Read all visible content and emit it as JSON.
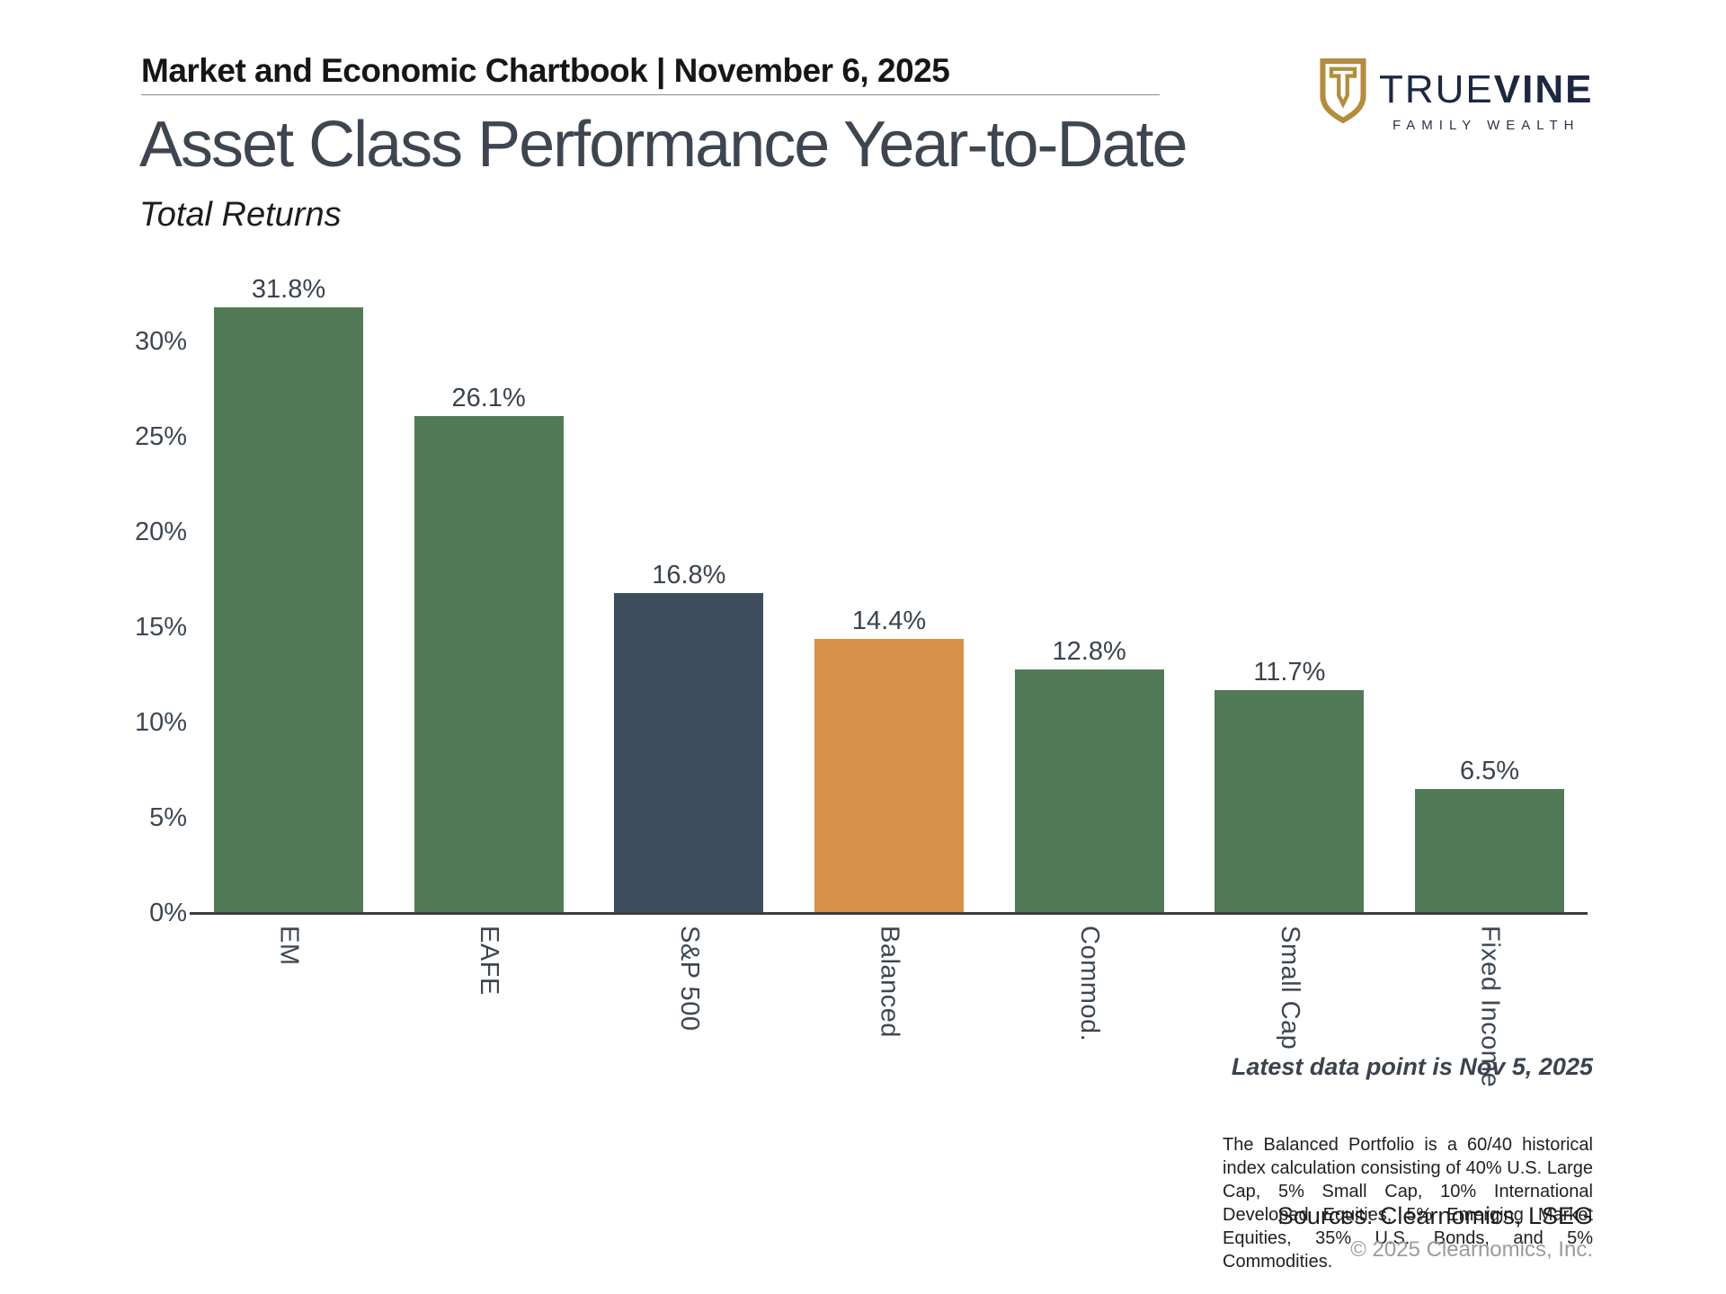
{
  "header": {
    "chartbook_title": "Market and Economic Chartbook | November 6, 2025"
  },
  "logo": {
    "brand_primary": "TRUE",
    "brand_secondary": "VINE",
    "tagline": "FAMILY WEALTH",
    "shield_color": "#b28d3e",
    "text_color": "#1e2742"
  },
  "title": "Asset Class Performance Year-to-Date",
  "subtitle": "Total Returns",
  "chart_data": {
    "type": "bar",
    "title": "Asset Class Performance Year-to-Date",
    "subtitle": "Total Returns",
    "categories": [
      "EM",
      "EAFE",
      "S&P 500",
      "Balanced",
      "Commod.",
      "Small Cap",
      "Fixed Income"
    ],
    "values": [
      31.8,
      26.1,
      16.8,
      14.4,
      12.8,
      11.7,
      6.5
    ],
    "value_labels": [
      "31.8%",
      "26.1%",
      "16.8%",
      "14.4%",
      "12.8%",
      "11.7%",
      "6.5%"
    ],
    "bar_colors": [
      "#537a57",
      "#537a57",
      "#3d4d5e",
      "#d8904a",
      "#537a57",
      "#537a57",
      "#537a57"
    ],
    "ytick_values": [
      0,
      5,
      10,
      15,
      20,
      25,
      30
    ],
    "ytick_labels": [
      "0%",
      "5%",
      "10%",
      "15%",
      "20%",
      "25%",
      "30%"
    ],
    "ylim": [
      0,
      33
    ],
    "xlabel": "",
    "ylabel": "",
    "grid": false,
    "legend": null,
    "colors": {
      "default_bar": "#537a57",
      "highlight_index_bar": "#3d4d5e",
      "highlight_balanced_bar": "#d8904a",
      "axis": "#3c3c3c",
      "tick_text": "#3d4751"
    }
  },
  "footnotes": {
    "latest": "Latest data point is Nov 5, 2025",
    "balanced_note": "The Balanced Portfolio is a 60/40 historical index calculation consisting of 40% U.S. Large Cap, 5% Small Cap, 10% International Developed Equities, 5% Emerging Market Equities, 35% U.S. Bonds, and 5% Commodities.",
    "sources": "Sources: Clearnomics, LSEG",
    "copyright": "© 2025 Clearnomics, Inc."
  }
}
